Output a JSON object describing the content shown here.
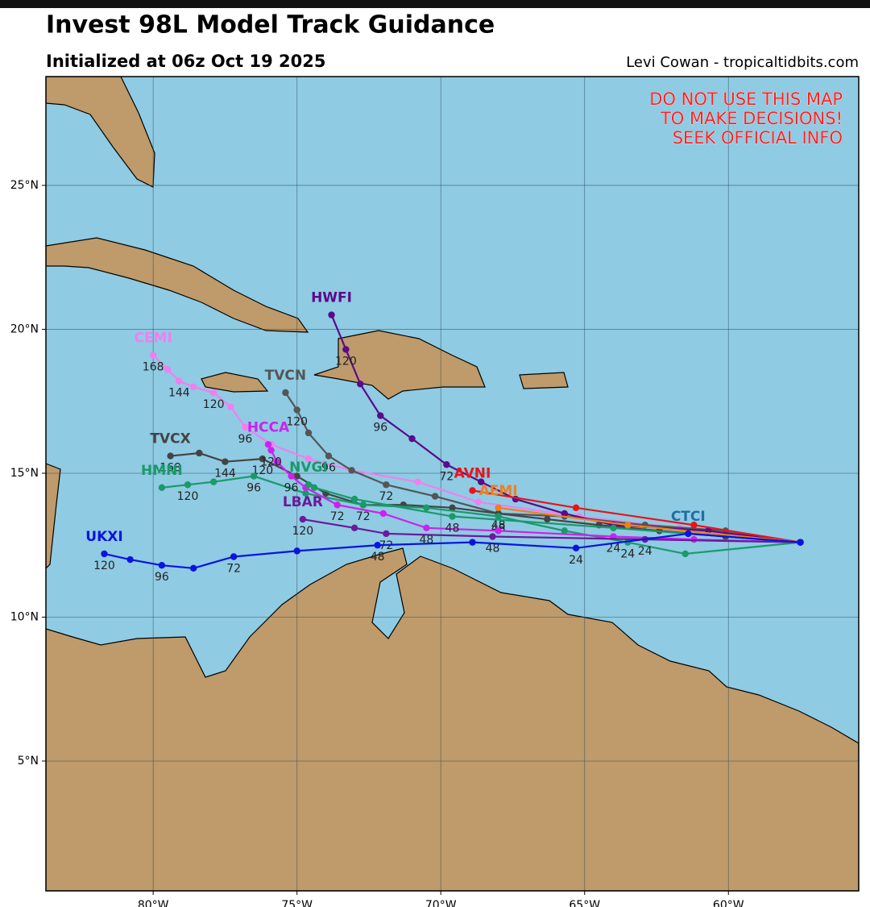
{
  "chart_data": {
    "type": "tracks",
    "title": "Invest 98L Model Track Guidance",
    "subtitle": "Initialized at 06z Oct 19 2025",
    "credit": "Levi Cowan - tropicaltidbits.com",
    "warning": [
      "DO NOT USE THIS MAP",
      "TO MAKE DECISIONS!",
      "SEEK OFFICIAL INFO"
    ],
    "xlim": [
      -83.73,
      -55.47
    ],
    "ylim": [
      0.49,
      28.78
    ],
    "xticks": [
      {
        "value": -80,
        "label": "80°W"
      },
      {
        "value": -75,
        "label": "75°W"
      },
      {
        "value": -70,
        "label": "70°W"
      },
      {
        "value": -65,
        "label": "65°W"
      },
      {
        "value": -60,
        "label": "60°W"
      }
    ],
    "yticks": [
      {
        "value": 5,
        "label": "5°N"
      },
      {
        "value": 10,
        "label": "10°N"
      },
      {
        "value": 15,
        "label": "15°N"
      },
      {
        "value": 20,
        "label": "20°N"
      },
      {
        "value": 25,
        "label": "25°N"
      }
    ],
    "grid": true,
    "series": [
      {
        "name": "CEMI",
        "color": "#f27ef0",
        "lon": [
          -57.5,
          -61.7,
          -65.2,
          -68.7,
          -70.8,
          -73.1,
          -74.6,
          -75.9,
          -76.8,
          -77.3,
          -77.9,
          -78.6,
          -79.1,
          -79.5,
          -80.0
        ],
        "lat": [
          12.6,
          13.1,
          13.5,
          14.0,
          14.7,
          15.1,
          15.5,
          16.0,
          16.6,
          17.3,
          17.8,
          18.0,
          18.2,
          18.6,
          19.1
        ],
        "hours": [
          null,
          null,
          null,
          null,
          null,
          null,
          null,
          null,
          96,
          null,
          120,
          null,
          144,
          null,
          168
        ]
      },
      {
        "name": "TVCN",
        "color": "#555555",
        "lon": [
          -57.5,
          -60.1,
          -62.9,
          -65.7,
          -68.0,
          -70.2,
          -71.9,
          -73.1,
          -73.9,
          -74.6,
          -75.0,
          -75.4
        ],
        "lat": [
          12.6,
          13.0,
          13.2,
          13.5,
          13.6,
          14.2,
          14.6,
          15.1,
          15.6,
          16.4,
          17.2,
          17.8
        ],
        "hours": [
          null,
          null,
          null,
          null,
          48,
          null,
          72,
          null,
          96,
          null,
          120,
          null
        ]
      },
      {
        "name": "TVCX",
        "color": "#444444",
        "lon": [
          -57.5,
          -60.1,
          -62.4,
          -64.5,
          -66.3,
          -68.0,
          -69.6,
          -71.3,
          -72.7,
          -74.0,
          -75.0,
          -76.2,
          -77.5,
          -78.4,
          -79.4
        ],
        "lat": [
          12.6,
          12.8,
          13.0,
          13.2,
          13.4,
          13.6,
          13.8,
          13.9,
          13.9,
          14.3,
          14.9,
          15.5,
          15.4,
          15.7,
          15.6
        ],
        "hours": [
          null,
          null,
          null,
          null,
          null,
          null,
          null,
          null,
          null,
          null,
          null,
          120,
          144,
          null,
          168
        ]
      },
      {
        "name": "HMNI",
        "color": "#1a9a6a",
        "lon": [
          -57.5,
          -61.5,
          -63.5,
          -65.7,
          -68.0,
          -70.5,
          -72.7,
          -74.7,
          -76.5,
          -77.9,
          -78.8,
          -79.7
        ],
        "lat": [
          12.6,
          12.2,
          12.6,
          13.0,
          13.5,
          13.8,
          13.9,
          14.3,
          14.9,
          14.7,
          14.6,
          14.5
        ],
        "hours": [
          null,
          null,
          24,
          null,
          48,
          null,
          72,
          null,
          96,
          null,
          120,
          null
        ]
      },
      {
        "name": "HCCA",
        "color": "#cc22ee",
        "lon": [
          -57.5,
          -61.2,
          -64.0,
          -68.0,
          -70.5,
          -72.0,
          -73.6,
          -74.7,
          -75.2,
          -75.7,
          -75.9,
          -76.0
        ],
        "lat": [
          12.6,
          12.7,
          12.8,
          13.0,
          13.1,
          13.6,
          13.9,
          14.5,
          14.9,
          15.4,
          15.8,
          16.0
        ],
        "hours": [
          null,
          null,
          24,
          null,
          48,
          null,
          72,
          null,
          96,
          null,
          120,
          null
        ]
      },
      {
        "name": "HWFI",
        "color": "#5a0a8a",
        "lon": [
          -57.5,
          -60.7,
          -64.0,
          -65.7,
          -67.4,
          -68.6,
          -69.8,
          -71.0,
          -72.1,
          -72.8,
          -73.3,
          -73.8
        ],
        "lat": [
          12.6,
          13.0,
          13.2,
          13.6,
          14.1,
          14.7,
          15.3,
          16.2,
          17.0,
          18.1,
          19.3,
          20.5
        ],
        "hours": [
          null,
          null,
          null,
          null,
          null,
          null,
          72,
          null,
          96,
          null,
          120,
          null
        ]
      },
      {
        "name": "LBAR",
        "color": "#6a1a9a",
        "lon": [
          -57.5,
          -62.9,
          -68.2,
          -71.9,
          -73.0,
          -74.8
        ],
        "lat": [
          12.6,
          12.7,
          12.8,
          12.9,
          13.1,
          13.4
        ],
        "hours": [
          null,
          24,
          48,
          72,
          null,
          120
        ]
      },
      {
        "name": "NVGI",
        "color": "#1a9a6a",
        "lon": [
          -57.5,
          -64.0,
          -69.6,
          -73.0,
          -74.4,
          -74.6
        ],
        "lat": [
          12.6,
          13.1,
          13.5,
          14.1,
          14.5,
          14.6
        ],
        "hours": [
          null,
          null,
          48,
          null,
          null,
          null
        ]
      },
      {
        "name": "AVNI",
        "color": "#e8141a",
        "lon": [
          -57.5,
          -61.2,
          -65.3,
          -68.9
        ],
        "lat": [
          12.6,
          13.2,
          13.8,
          14.4
        ],
        "hours": [
          null,
          null,
          null,
          null
        ]
      },
      {
        "name": "AEMI",
        "color": "#f07f1e",
        "lon": [
          -57.5,
          -63.5,
          -68.0
        ],
        "lat": [
          12.6,
          13.2,
          13.8
        ],
        "hours": [
          null,
          null,
          null
        ]
      },
      {
        "name": "CTCI",
        "color": "#1f6fa0",
        "lon": [
          -57.5,
          -61.4
        ],
        "lat": [
          12.6,
          12.9
        ],
        "hours": [
          null,
          null
        ]
      },
      {
        "name": "UKXI",
        "color": "#0a14e0",
        "lon": [
          -57.5,
          -61.4,
          -65.3,
          -68.9,
          -72.2,
          -75.0,
          -77.2,
          -78.6,
          -79.7,
          -80.8,
          -81.7
        ],
        "lat": [
          12.6,
          12.9,
          12.4,
          12.6,
          12.5,
          12.3,
          12.1,
          11.7,
          11.8,
          12.0,
          12.2
        ],
        "hours": [
          null,
          null,
          24,
          null,
          48,
          null,
          72,
          null,
          96,
          null,
          120
        ]
      }
    ]
  }
}
